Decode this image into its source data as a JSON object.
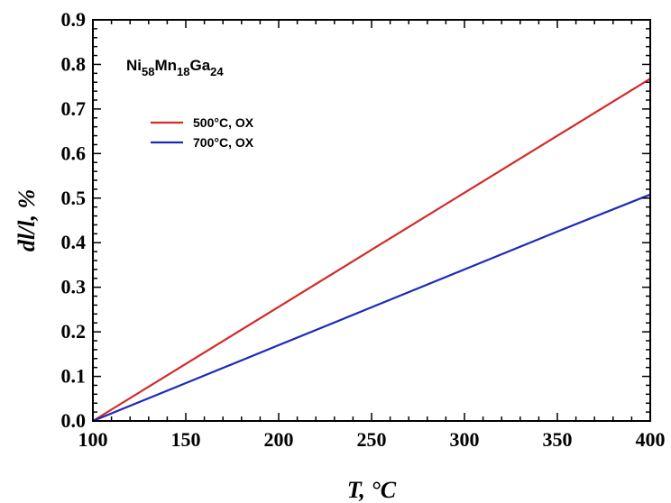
{
  "chart_data": {
    "type": "line",
    "title": "",
    "xlabel": "T, °C",
    "ylabel": "dl/l, %",
    "xlim": [
      100,
      400
    ],
    "ylim": [
      0.0,
      0.9
    ],
    "xticks": [
      100,
      150,
      200,
      250,
      300,
      350,
      400
    ],
    "yticks": [
      0.0,
      0.1,
      0.2,
      0.3,
      0.4,
      0.5,
      0.6,
      0.7,
      0.8,
      0.9
    ],
    "xtick_labels": [
      "100",
      "150",
      "200",
      "250",
      "300",
      "350",
      "400"
    ],
    "ytick_labels": [
      "0.0",
      "0.1",
      "0.2",
      "0.3",
      "0.4",
      "0.5",
      "0.6",
      "0.7",
      "0.8",
      "0.9"
    ],
    "grid": false,
    "legend_position": "upper-left",
    "annotation": {
      "parts": [
        {
          "text": "Ni",
          "sub": false
        },
        {
          "text": "58",
          "sub": true
        },
        {
          "text": "Mn",
          "sub": false
        },
        {
          "text": "18",
          "sub": true
        },
        {
          "text": "Ga",
          "sub": false
        },
        {
          "text": "24",
          "sub": true
        }
      ]
    },
    "series": [
      {
        "name": "500°C, OX",
        "color": "#d42a2a",
        "x": [
          100,
          150,
          200,
          250,
          300,
          350,
          400
        ],
        "y": [
          0.0,
          0.128,
          0.256,
          0.384,
          0.512,
          0.64,
          0.768
        ]
      },
      {
        "name": "700°C, OX",
        "color": "#1c2ab8",
        "x": [
          100,
          150,
          200,
          250,
          300,
          350,
          400
        ],
        "y": [
          0.0,
          0.085,
          0.17,
          0.255,
          0.34,
          0.425,
          0.508
        ]
      }
    ]
  }
}
